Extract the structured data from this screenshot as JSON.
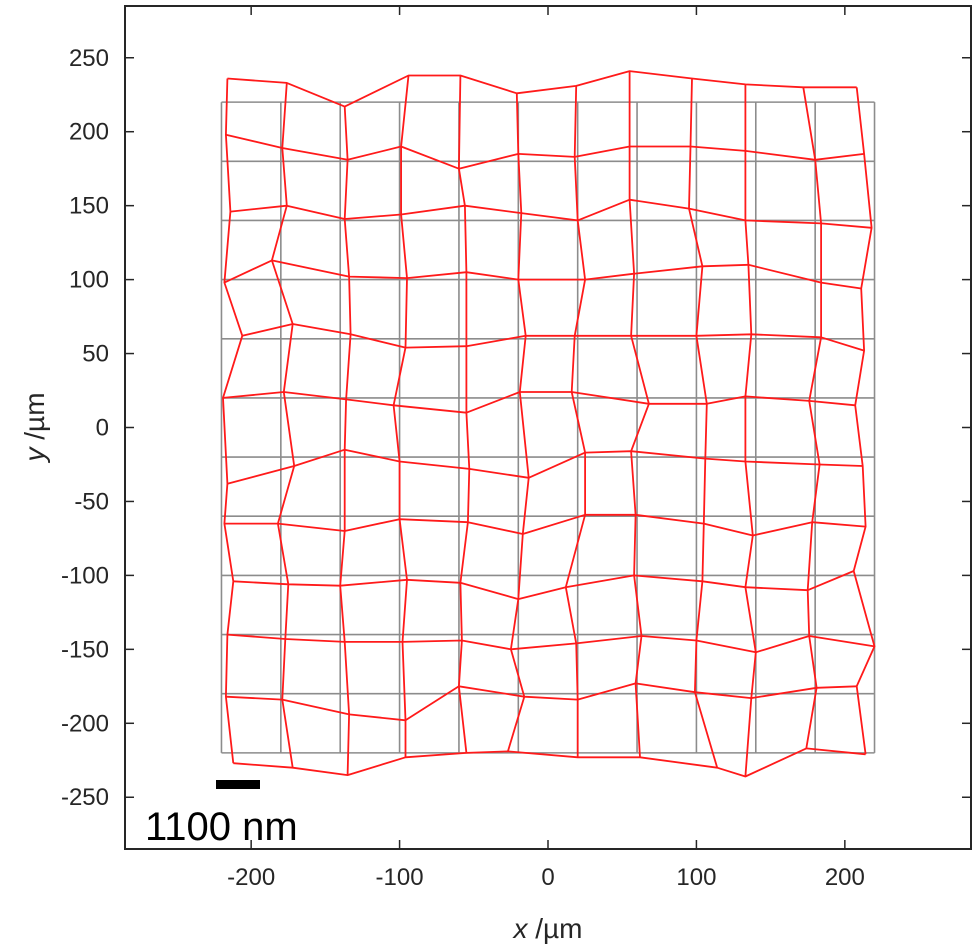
{
  "chart_data": {
    "type": "line",
    "xlabel": {
      "var": "x",
      "unit": " /µm"
    },
    "ylabel": {
      "var": "y",
      "unit": " /µm"
    },
    "xlim": [
      -285,
      285
    ],
    "ylim": [
      -285,
      285
    ],
    "x_ticks": [
      -200,
      -100,
      0,
      100,
      200
    ],
    "y_ticks": [
      250,
      200,
      150,
      100,
      50,
      0,
      -50,
      -100,
      -150,
      -200,
      -250
    ],
    "grid": false,
    "reference_grid": {
      "x_lines": [
        -220,
        -180,
        -140,
        -100,
        -60,
        -20,
        20,
        60,
        100,
        140,
        180,
        220
      ],
      "y_lines": [
        220,
        180,
        140,
        100,
        60,
        20,
        -20,
        -60,
        -100,
        -140,
        -180,
        -220
      ],
      "color": "#8c8c8c"
    },
    "deformed_grid_color": "#ff1a1a",
    "deformed_rows": [
      [
        [
          -216,
          236
        ],
        [
          -176,
          233
        ],
        [
          -137,
          217
        ],
        [
          -94,
          238
        ],
        [
          -59,
          238
        ],
        [
          -21,
          226
        ],
        [
          19,
          231
        ],
        [
          55,
          241
        ],
        [
          97,
          236
        ],
        [
          133,
          232
        ],
        [
          172,
          230
        ],
        [
          208,
          230
        ]
      ],
      [
        [
          -217,
          198
        ],
        [
          -179,
          189
        ],
        [
          -135,
          181
        ],
        [
          -99,
          190
        ],
        [
          -60,
          175
        ],
        [
          -20,
          185
        ],
        [
          18,
          183
        ],
        [
          55,
          190
        ],
        [
          96,
          190
        ],
        [
          133,
          187
        ],
        [
          180,
          181
        ],
        [
          213,
          185
        ]
      ],
      [
        [
          -214,
          146
        ],
        [
          -176,
          150
        ],
        [
          -137,
          141
        ],
        [
          -99,
          144
        ],
        [
          -56,
          150
        ],
        [
          -18,
          145
        ],
        [
          20,
          140
        ],
        [
          55,
          154
        ],
        [
          95,
          148
        ],
        [
          133,
          140
        ],
        [
          184,
          138
        ],
        [
          218,
          135
        ]
      ],
      [
        [
          -218,
          98
        ],
        [
          -186,
          113
        ],
        [
          -134,
          102
        ],
        [
          -95,
          101
        ],
        [
          -55,
          105
        ],
        [
          -20,
          100
        ],
        [
          25,
          100
        ],
        [
          58,
          104
        ],
        [
          104,
          109
        ],
        [
          135,
          110
        ],
        [
          184,
          98
        ],
        [
          211,
          94
        ]
      ],
      [
        [
          -206,
          62
        ],
        [
          -172,
          70
        ],
        [
          -133,
          63
        ],
        [
          -96,
          54
        ],
        [
          -55,
          55
        ],
        [
          -15,
          62
        ],
        [
          18,
          62
        ],
        [
          56,
          62
        ],
        [
          100,
          62
        ],
        [
          137,
          63
        ],
        [
          184,
          61
        ],
        [
          213,
          52
        ]
      ],
      [
        [
          -219,
          20
        ],
        [
          -178,
          24
        ],
        [
          -136,
          19
        ],
        [
          -104,
          15
        ],
        [
          -55,
          10
        ],
        [
          -19,
          24
        ],
        [
          16,
          24
        ],
        [
          68,
          16
        ],
        [
          107,
          16
        ],
        [
          133,
          21
        ],
        [
          176,
          18
        ],
        [
          207,
          15
        ]
      ],
      [
        [
          -216,
          -38
        ],
        [
          -171,
          -26
        ],
        [
          -137,
          -15
        ],
        [
          -100,
          -23
        ],
        [
          -53,
          -28
        ],
        [
          -13,
          -34
        ],
        [
          25,
          -17
        ],
        [
          56,
          -16
        ],
        [
          106,
          -21
        ],
        [
          133,
          -23
        ],
        [
          183,
          -25
        ],
        [
          212,
          -26
        ]
      ],
      [
        [
          -218,
          -65
        ],
        [
          -182,
          -65
        ],
        [
          -137,
          -70
        ],
        [
          -100,
          -62
        ],
        [
          -54,
          -64
        ],
        [
          -17,
          -72
        ],
        [
          25,
          -59
        ],
        [
          59,
          -59
        ],
        [
          105,
          -65
        ],
        [
          138,
          -73
        ],
        [
          178,
          -64
        ],
        [
          214,
          -67
        ]
      ],
      [
        [
          -212,
          -104
        ],
        [
          -175,
          -106
        ],
        [
          -140,
          -107
        ],
        [
          -95,
          -103
        ],
        [
          -59,
          -105
        ],
        [
          -20,
          -116
        ],
        [
          12,
          -108
        ],
        [
          58,
          -100
        ],
        [
          104,
          -104
        ],
        [
          133,
          -108
        ],
        [
          175,
          -110
        ],
        [
          206,
          -97
        ]
      ],
      [
        [
          -216,
          -140
        ],
        [
          -177,
          -143
        ],
        [
          -137,
          -145
        ],
        [
          -98,
          -145
        ],
        [
          -58,
          -144
        ],
        [
          -25,
          -150
        ],
        [
          19,
          -146
        ],
        [
          63,
          -141
        ],
        [
          100,
          -144
        ],
        [
          140,
          -152
        ],
        [
          176,
          -141
        ],
        [
          220,
          -148
        ]
      ],
      [
        [
          -217,
          -182
        ],
        [
          -179,
          -184
        ],
        [
          -134,
          -194
        ],
        [
          -96,
          -198
        ],
        [
          -60,
          -175
        ],
        [
          -16,
          -182
        ],
        [
          20,
          -184
        ],
        [
          59,
          -173
        ],
        [
          99,
          -179
        ],
        [
          137,
          -183
        ],
        [
          181,
          -176
        ],
        [
          208,
          -175
        ]
      ],
      [
        [
          -212,
          -227
        ],
        [
          -172,
          -230
        ],
        [
          -135,
          -235
        ],
        [
          -96,
          -223
        ],
        [
          -55,
          -220
        ],
        [
          -27,
          -219
        ],
        [
          20,
          -223
        ],
        [
          62,
          -223
        ],
        [
          114,
          -230
        ],
        [
          133,
          -236
        ],
        [
          174,
          -217
        ],
        [
          214,
          -221
        ]
      ]
    ]
  },
  "scale_bar": {
    "label": "1100 nm"
  }
}
